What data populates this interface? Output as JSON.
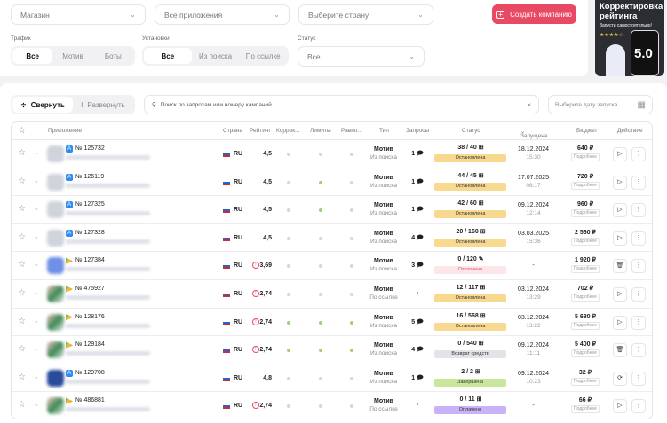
{
  "filters": {
    "store_placeholder": "Магазин",
    "apps_placeholder": "Все приложения",
    "country_placeholder": "Выберите страну",
    "traffic_label": "Трафик",
    "traffic_options": [
      "Все",
      "Мотив",
      "Боты"
    ],
    "installs_label": "Установки",
    "installs_options": [
      "Все",
      "Из поиска",
      "По ссылке"
    ],
    "status_label": "Статус",
    "status_value": "Все"
  },
  "create_button": "Создать компанию",
  "promo": {
    "title": "Корректировка рейтинга",
    "subtitle": "Запусти самостоятельно!",
    "score": "5.0"
  },
  "toolbar": {
    "collapse": "Свернуть",
    "expand": "Развернуть",
    "search_placeholder": "Поиск по запросам или номеру кампаний",
    "date_placeholder": "Выберите дату запуска"
  },
  "columns": [
    "Приложение",
    "Страна",
    "Рейтинг",
    "Коррек...",
    "Лимиты",
    "Равно...",
    "Тип",
    "Запросы",
    "Статус",
    "Запущена",
    "Бюджет",
    "Действие"
  ],
  "colors": {
    "accent": "#e84a64",
    "stopped": "#f8d98f",
    "rejected": "#fde6ea",
    "refund": "#e2e4e8",
    "done": "#c9e79a",
    "paid": "#c9b2f7",
    "dot_green": "#9ed36a",
    "dot_gray": "#d6d6da"
  },
  "details_label": "Подробнее",
  "rows": [
    {
      "id": "№ 125732",
      "store": "appstore",
      "country": "RU",
      "rating": "4,5",
      "warn": false,
      "dots": [
        0,
        0,
        0
      ],
      "type": "Мотив",
      "source": "Из поиска",
      "requests": "1",
      "progress": "38 / 40",
      "status": "Остановлена",
      "status_kind": "stopped",
      "date": "18.12.2024",
      "time": "15:30",
      "budget": "640 ₽",
      "action": "play"
    },
    {
      "id": "№ 126119",
      "store": "appstore",
      "country": "RU",
      "rating": "4,5",
      "warn": false,
      "dots": [
        0,
        1,
        0
      ],
      "type": "Мотив",
      "source": "Из поиска",
      "requests": "1",
      "progress": "44 / 45",
      "status": "Остановлена",
      "status_kind": "stopped",
      "date": "17.07.2025",
      "time": "08:17",
      "budget": "720 ₽",
      "action": "play"
    },
    {
      "id": "№ 127325",
      "store": "appstore",
      "country": "RU",
      "rating": "4,5",
      "warn": false,
      "dots": [
        0,
        1,
        0
      ],
      "type": "Мотив",
      "source": "Из поиска",
      "requests": "1",
      "progress": "42 / 60",
      "status": "Остановлена",
      "status_kind": "stopped",
      "date": "09.12.2024",
      "time": "12:14",
      "budget": "960 ₽",
      "action": "play"
    },
    {
      "id": "№ 127328",
      "store": "appstore",
      "country": "RU",
      "rating": "4,5",
      "warn": false,
      "dots": [
        0,
        0,
        0
      ],
      "type": "Мотив",
      "source": "Из поиска",
      "requests": "4",
      "progress": "20 / 160",
      "status": "Остановлена",
      "status_kind": "stopped",
      "date": "03.03.2025",
      "time": "15:36",
      "budget": "2 560 ₽",
      "action": "play"
    },
    {
      "id": "№ 127384",
      "store": "googleplay",
      "country": "RU",
      "rating": "3,69",
      "warn": true,
      "dots": [
        0,
        0,
        0
      ],
      "type": "Мотив",
      "source": "Из поиска",
      "requests": "3",
      "progress": "0 / 120",
      "status": "Отклонена",
      "status_kind": "rejected",
      "date": "-",
      "time": "",
      "budget": "1 920 ₽",
      "action": "delete"
    },
    {
      "id": "№ 475927",
      "store": "googleplay",
      "country": "RU",
      "rating": "2,74",
      "warn": true,
      "dots": [
        0,
        0,
        0
      ],
      "type": "Мотив",
      "source": "По ссылке",
      "requests": "-",
      "progress": "12 / 117",
      "status": "Остановлена",
      "status_kind": "stopped",
      "date": "03.12.2024",
      "time": "13:29",
      "budget": "702 ₽",
      "action": "play"
    },
    {
      "id": "№ 128176",
      "store": "googleplay",
      "country": "RU",
      "rating": "2,74",
      "warn": true,
      "dots": [
        1,
        1,
        1
      ],
      "type": "Мотив",
      "source": "Из поиска",
      "requests": "5",
      "progress": "16 / 568",
      "status": "Остановлена",
      "status_kind": "stopped",
      "date": "03.12.2024",
      "time": "13:22",
      "budget": "5 680 ₽",
      "action": "play"
    },
    {
      "id": "№ 129184",
      "store": "googleplay",
      "country": "RU",
      "rating": "2,74",
      "warn": true,
      "dots": [
        1,
        1,
        1
      ],
      "type": "Мотив",
      "source": "Из поиска",
      "requests": "4",
      "progress": "0 / 540",
      "status": "Возврат средств",
      "status_kind": "refund",
      "date": "09.12.2024",
      "time": "11:11",
      "budget": "5 400 ₽",
      "action": "delete"
    },
    {
      "id": "№ 129708",
      "store": "appstore",
      "country": "RU",
      "rating": "4,8",
      "warn": false,
      "dots": [
        0,
        0,
        0
      ],
      "type": "Мотив",
      "source": "Из поиска",
      "requests": "1",
      "progress": "2 / 2",
      "status": "Завершена",
      "status_kind": "done",
      "date": "09.12.2024",
      "time": "10:23",
      "budget": "32 ₽",
      "action": "restart"
    },
    {
      "id": "№ 486881",
      "store": "googleplay",
      "country": "RU",
      "rating": "2,74",
      "warn": true,
      "dots": [
        0,
        0,
        0
      ],
      "type": "Мотив",
      "source": "По ссылке",
      "requests": "-",
      "progress": "0 / 11",
      "status": "Оплачено",
      "status_kind": "paid",
      "date": "-",
      "time": "",
      "budget": "66 ₽",
      "action": "play"
    }
  ]
}
